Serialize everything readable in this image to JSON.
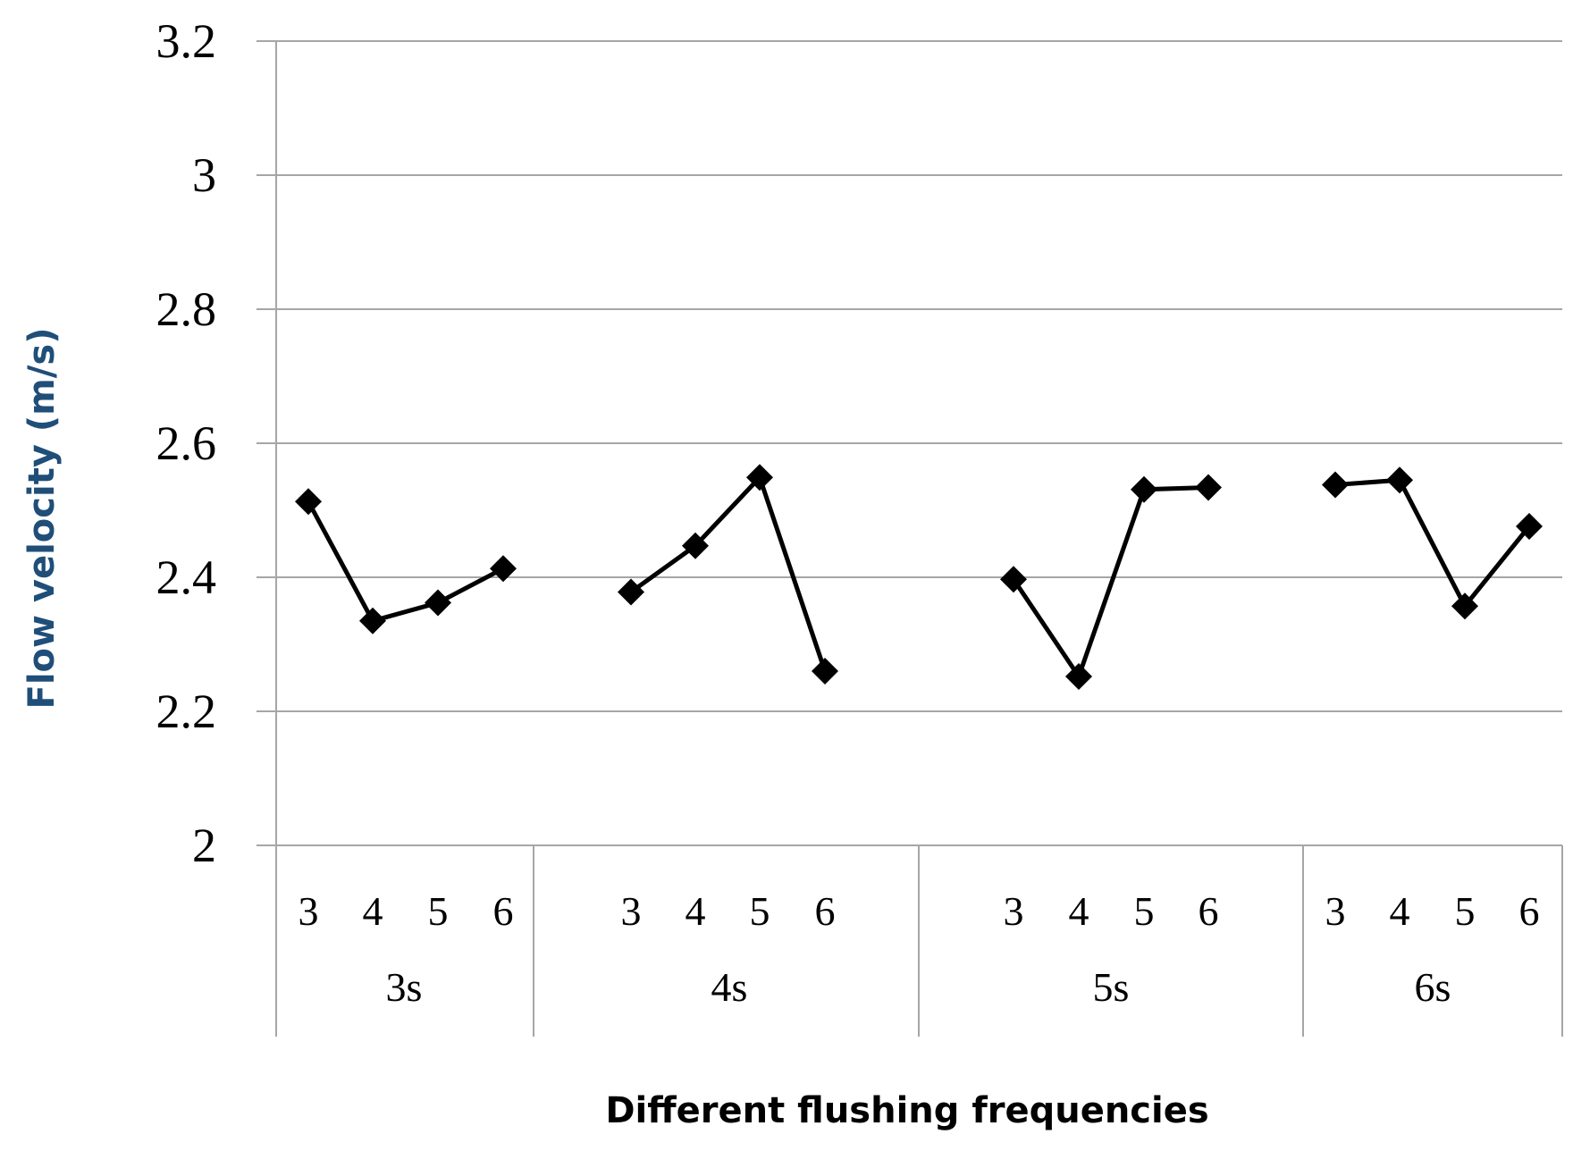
{
  "chart_data": {
    "type": "line",
    "title": "",
    "xlabel": "Different flushing frequencies",
    "ylabel": "Flow velocity (m/s)",
    "ylim": [
      2,
      3.2
    ],
    "yticks": [
      "3.2",
      "3",
      "2.8",
      "2.6",
      "2.4",
      "2.2",
      "2"
    ],
    "grid": true,
    "legend": "none",
    "groups": [
      {
        "label": "3s",
        "categories": [
          "3",
          "4",
          "5",
          "6"
        ],
        "values": [
          2.513,
          2.335,
          2.362,
          2.413
        ]
      },
      {
        "label": "4s",
        "categories": [
          "3",
          "4",
          "5",
          "6"
        ],
        "values": [
          2.378,
          2.447,
          2.549,
          2.26
        ]
      },
      {
        "label": "5s",
        "categories": [
          "3",
          "4",
          "5",
          "6"
        ],
        "values": [
          2.397,
          2.252,
          2.531,
          2.534
        ]
      },
      {
        "label": "6s",
        "categories": [
          "3",
          "4",
          "5",
          "6"
        ],
        "values": [
          2.538,
          2.545,
          2.357,
          2.476
        ]
      }
    ],
    "colors": {
      "line": "#000000",
      "grid": "#a6a6a6",
      "ylabel": "#1f4e79",
      "xlabel": "#000000"
    }
  }
}
